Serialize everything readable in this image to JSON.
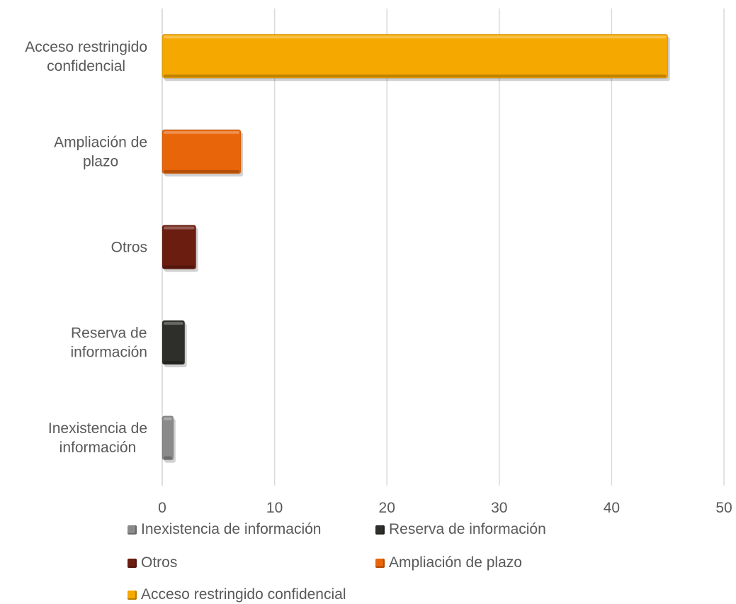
{
  "chart_data": {
    "type": "bar",
    "orientation": "horizontal",
    "categories": [
      "Acceso restringido confidencial",
      "Ampliación de plazo",
      "Otros",
      "Reserva de información",
      "Inexistencia de información"
    ],
    "category_label_lines": [
      [
        "Acceso restringido",
        "confidencial"
      ],
      [
        "Ampliación de",
        "plazo"
      ],
      [
        "Otros"
      ],
      [
        "Reserva de",
        "información"
      ],
      [
        "Inexistencia de",
        "información"
      ]
    ],
    "values": [
      45,
      7,
      3,
      2,
      1
    ],
    "colors": [
      "#F5A800",
      "#E8650A",
      "#6B1D10",
      "#2E2E2A",
      "#8A8A8A"
    ],
    "xlim": [
      0,
      50
    ],
    "xticks": [
      0,
      10,
      20,
      30,
      40,
      50
    ],
    "grid": "vertical",
    "legend_position": "bottom",
    "legend": [
      {
        "label": "Inexistencia de información",
        "color": "#8A8A8A"
      },
      {
        "label": "Reserva de información",
        "color": "#2E2E2A"
      },
      {
        "label": "Otros",
        "color": "#6B1D10"
      },
      {
        "label": "Ampliación de plazo",
        "color": "#E8650A"
      },
      {
        "label": "Acceso restringido confidencial",
        "color": "#F5A800"
      }
    ]
  }
}
